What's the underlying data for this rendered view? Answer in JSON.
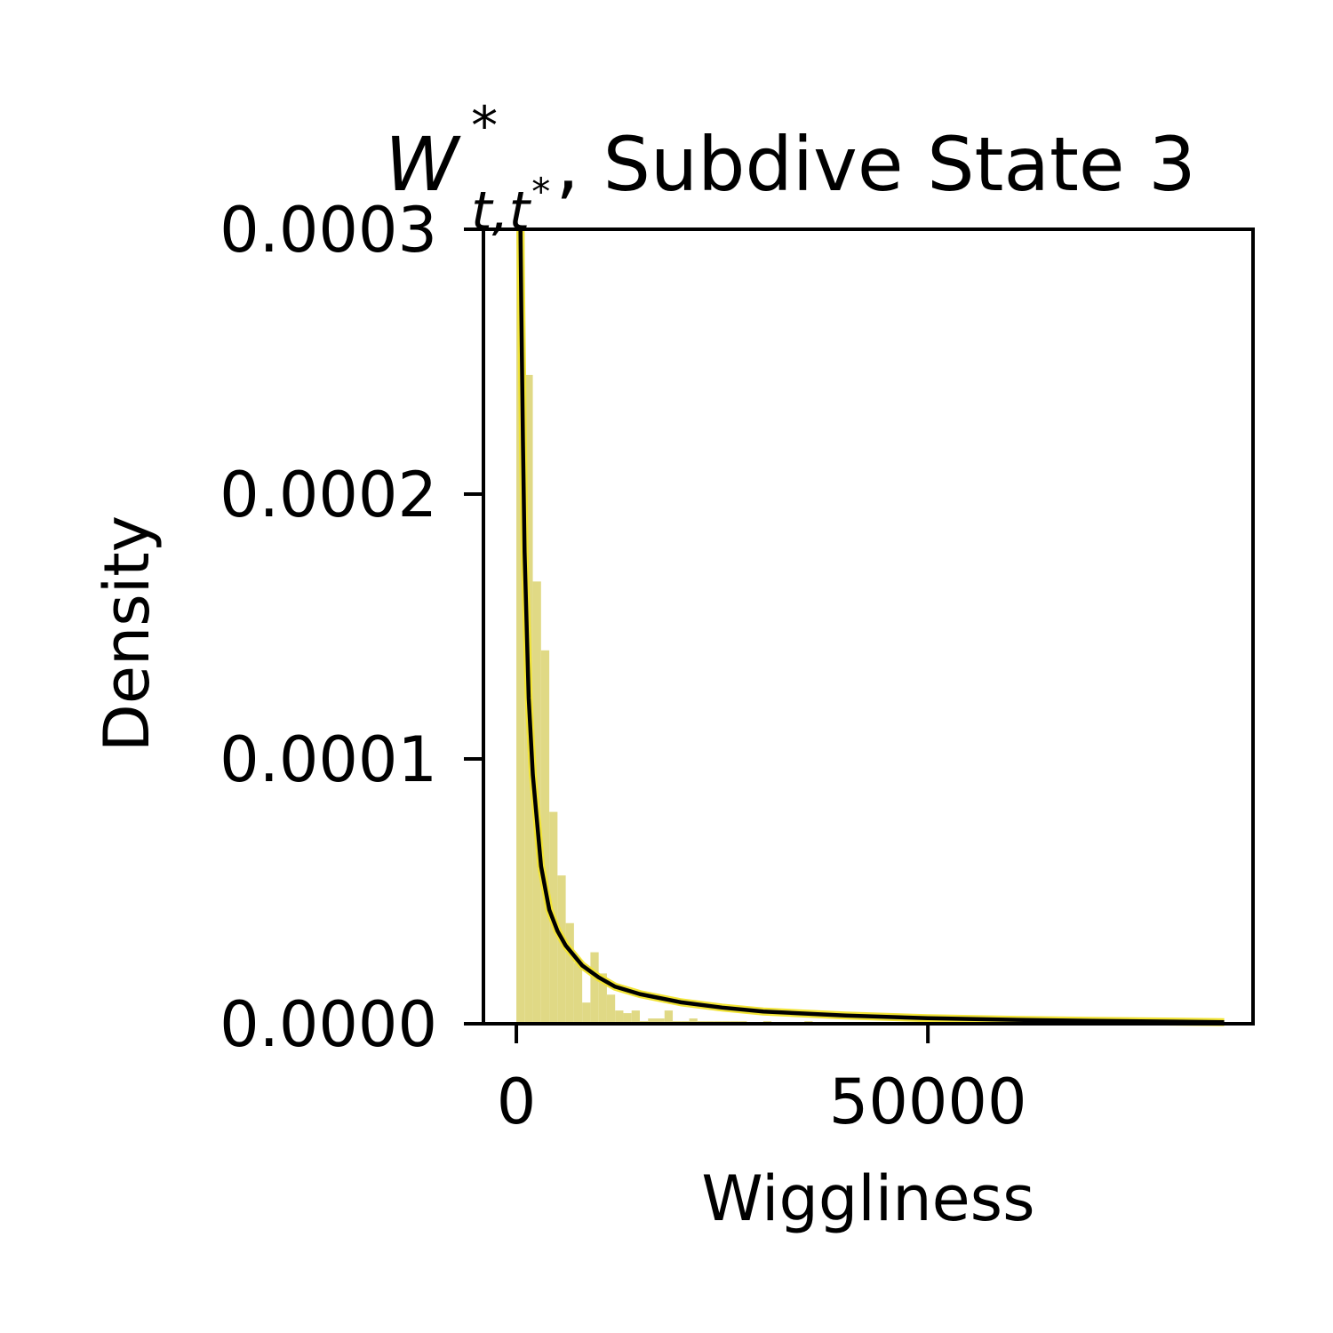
{
  "chart_data": {
    "type": "histogram",
    "title": "W*_{t,t*}, Subdive State 3",
    "title_parts": {
      "symbol": "W",
      "superscript": "*",
      "subscript": "t,t",
      "subscript_star": "*",
      "rest": ", Subdive State 3"
    },
    "xlabel": "Wiggliness",
    "ylabel": "Density",
    "xlim": [
      -4000,
      89500
    ],
    "ylim": [
      0,
      0.0003
    ],
    "x_ticks": [
      0,
      50000
    ],
    "x_tick_labels": [
      "0",
      "50000"
    ],
    "y_ticks": [
      0,
      0.0001,
      0.0002,
      0.0003
    ],
    "y_tick_labels": [
      "0.0000",
      "0.0001",
      "0.0002",
      "0.0003"
    ],
    "grid": false,
    "colors": {
      "bars": "#e0d985",
      "fit_line": "#000000",
      "fit_halo": "#f2e436",
      "axes": "#000000"
    },
    "histogram": {
      "bin_start": 0,
      "bin_width": 1000,
      "densities": [
        0.0003,
        0.000245,
        0.000167,
        0.000141,
        8e-05,
        5.6e-05,
        3.8e-05,
        2.3e-05,
        8e-06,
        2.7e-05,
        1.9e-05,
        1.1e-05,
        5e-06,
        4e-06,
        5e-06,
        1e-06,
        2e-06,
        2e-06,
        5e-06,
        1e-06,
        1e-06,
        2e-06,
        1e-06,
        1e-06,
        1e-06,
        1e-06,
        1e-06,
        1e-06,
        5e-07,
        5e-07,
        1e-06,
        5e-07,
        5e-07,
        5e-07,
        5e-07,
        1e-06,
        5e-07,
        5e-07,
        5e-07,
        5e-07
      ]
    },
    "fit_curve": {
      "x": [
        500,
        600,
        800,
        1000,
        1500,
        2000,
        3000,
        4000,
        5000,
        6000,
        8000,
        10000,
        12000,
        15000,
        20000,
        25000,
        30000,
        40000,
        50000,
        60000,
        70000,
        80000,
        86000
      ],
      "y": [
        0.0003,
        0.00027,
        0.00022,
        0.000178,
        0.000123,
        9.4e-05,
        5.95e-05,
        4.3e-05,
        3.5e-05,
        2.95e-05,
        2.2e-05,
        1.75e-05,
        1.4e-05,
        1.12e-05,
        8.1e-06,
        6.1e-06,
        4.6e-06,
        3.1e-06,
        2.1e-06,
        1.5e-06,
        1.1e-06,
        8e-07,
        6e-07
      ]
    }
  }
}
